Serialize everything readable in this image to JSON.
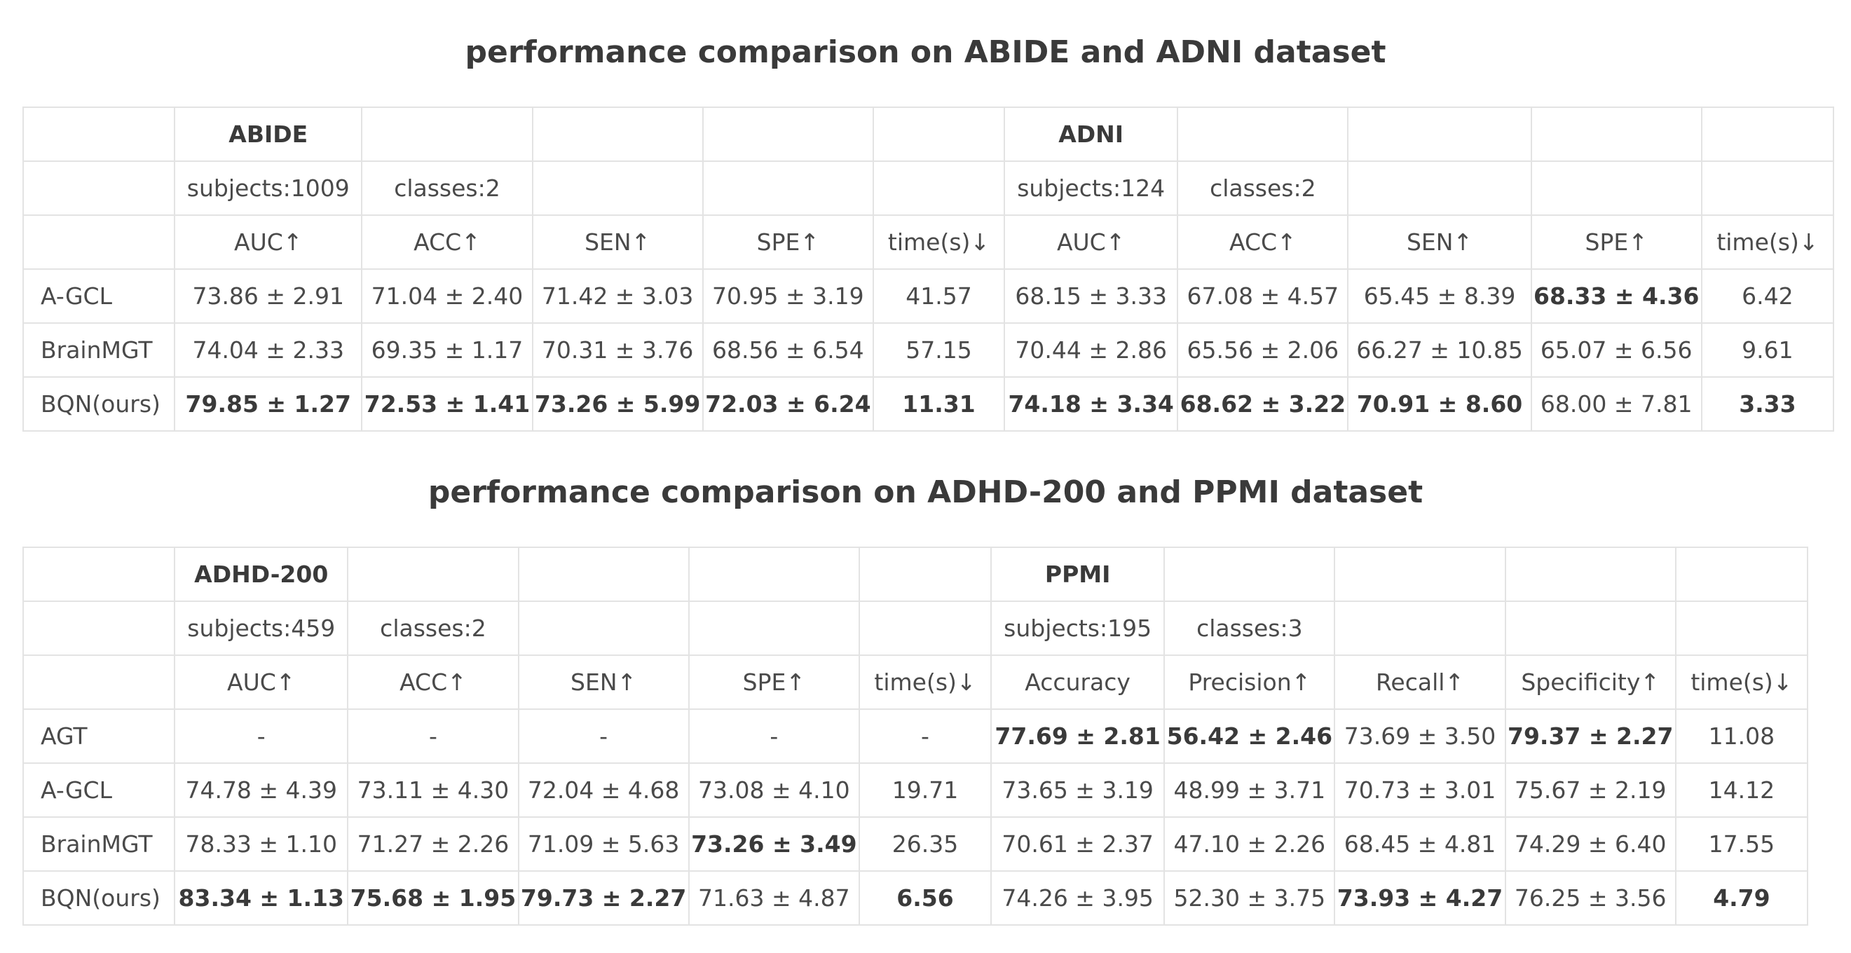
{
  "table1": {
    "title": "performance comparison on ABIDE and ADNI dataset",
    "columns": 11,
    "rows": [
      [
        "",
        {
          "t": "ABIDE",
          "b": true
        },
        "",
        "",
        "",
        "",
        {
          "t": "ADNI",
          "b": true
        },
        "",
        "",
        "",
        ""
      ],
      [
        "",
        "subjects:1009",
        "classes:2",
        "",
        "",
        "",
        "subjects:124",
        "classes:2",
        "",
        "",
        ""
      ],
      [
        "",
        "AUC↑",
        "ACC↑",
        "SEN↑",
        "SPE↑",
        "time(s)↓",
        "AUC↑",
        "ACC↑",
        "SEN↑",
        "SPE↑",
        "time(s)↓"
      ],
      [
        "A-GCL",
        "73.86 ± 2.91",
        "71.04 ± 2.40",
        "71.42 ± 3.03",
        "70.95 ± 3.19",
        "41.57",
        "68.15 ± 3.33",
        "67.08 ± 4.57",
        "65.45 ± 8.39",
        {
          "t": "68.33 ± 4.36",
          "b": true
        },
        "6.42"
      ],
      [
        "BrainMGT",
        "74.04 ± 2.33",
        "69.35 ± 1.17",
        "70.31 ± 3.76",
        "68.56 ± 6.54",
        "57.15",
        "70.44 ± 2.86",
        "65.56 ± 2.06",
        "66.27 ± 10.85",
        "65.07 ± 6.56",
        "9.61"
      ],
      [
        "BQN(ours)",
        {
          "t": "79.85 ± 1.27",
          "b": true
        },
        {
          "t": "72.53 ± 1.41",
          "b": true
        },
        {
          "t": "73.26 ± 5.99",
          "b": true
        },
        {
          "t": "72.03 ± 6.24",
          "b": true
        },
        {
          "t": "11.31",
          "b": true
        },
        {
          "t": "74.18 ± 3.34",
          "b": true
        },
        {
          "t": "68.62 ± 3.22",
          "b": true
        },
        {
          "t": "70.91 ± 8.60",
          "b": true
        },
        "68.00 ± 7.81",
        {
          "t": "3.33",
          "b": true
        }
      ]
    ]
  },
  "table2": {
    "title": "performance comparison on ADHD-200 and PPMI dataset",
    "columns": 11,
    "rows": [
      [
        "",
        {
          "t": "ADHD-200",
          "b": true
        },
        "",
        "",
        "",
        "",
        {
          "t": "PPMI",
          "b": true
        },
        "",
        "",
        "",
        ""
      ],
      [
        "",
        "subjects:459",
        "classes:2",
        "",
        "",
        "",
        "subjects:195",
        "classes:3",
        "",
        "",
        ""
      ],
      [
        "",
        "AUC↑",
        "ACC↑",
        "SEN↑",
        "SPE↑",
        "time(s)↓",
        "Accuracy",
        "Precision↑",
        "Recall↑",
        "Specificity↑",
        "time(s)↓"
      ],
      [
        "AGT",
        "-",
        "-",
        "-",
        "-",
        "-",
        {
          "t": "77.69 ± 2.81",
          "b": true
        },
        {
          "t": "56.42 ± 2.46",
          "b": true
        },
        "73.69 ± 3.50",
        {
          "t": "79.37 ± 2.27",
          "b": true
        },
        "11.08"
      ],
      [
        "A-GCL",
        "74.78 ± 4.39",
        "73.11 ± 4.30",
        "72.04 ± 4.68",
        "73.08 ± 4.10",
        "19.71",
        "73.65 ± 3.19",
        "48.99 ± 3.71",
        "70.73 ± 3.01",
        "75.67 ± 2.19",
        "14.12"
      ],
      [
        "BrainMGT",
        "78.33 ± 1.10",
        "71.27 ± 2.26",
        "71.09 ± 5.63",
        {
          "t": "73.26 ± 3.49",
          "b": true
        },
        "26.35",
        "70.61 ± 2.37",
        "47.10 ± 2.26",
        "68.45 ± 4.81",
        "74.29 ± 6.40",
        "17.55"
      ],
      [
        "BQN(ours)",
        {
          "t": "83.34 ± 1.13",
          "b": true
        },
        {
          "t": "75.68 ± 1.95",
          "b": true
        },
        {
          "t": "79.73 ± 2.27",
          "b": true
        },
        "71.63 ± 4.87",
        {
          "t": "6.56",
          "b": true
        },
        "74.26 ± 3.95",
        "52.30 ± 3.75",
        {
          "t": "73.93 ± 4.27",
          "b": true
        },
        "76.25 ± 3.56",
        {
          "t": "4.79",
          "b": true
        }
      ]
    ]
  }
}
